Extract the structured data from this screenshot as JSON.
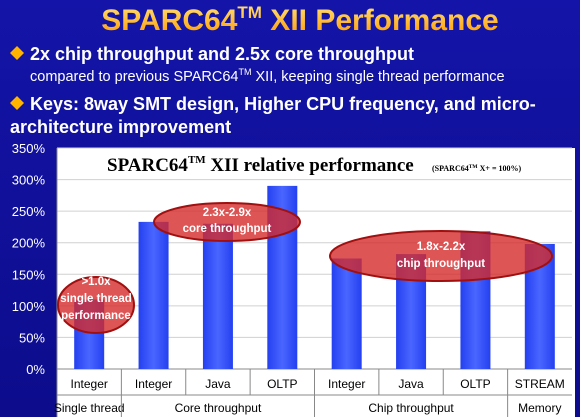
{
  "header": {
    "title": [
      "SPARC64",
      "TM",
      " XII Performance"
    ],
    "bullets": [
      {
        "lines": [
          [
            "2x chip throughput and 2.5x core throughput"
          ],
          [
            "compared to previous SPARC64",
            "TM",
            " XII, keeping single thread performance"
          ]
        ]
      },
      {
        "lines": [
          [
            "Keys: 8way SMT design, Higher CPU frequency, and micro-"
          ],
          [
            "architecture improvement"
          ]
        ]
      }
    ]
  },
  "chart_data": {
    "type": "bar",
    "title": [
      "SPARC64",
      "TM",
      " XII relative performance"
    ],
    "subtitle": [
      "(SPARC64",
      "TM",
      " X+ = 100%)"
    ],
    "color": "#2f4cf5",
    "groups": [
      {
        "name": "Single thread",
        "categories": [
          "Integer"
        ],
        "values": [
          110
        ]
      },
      {
        "name": "Core throughput",
        "categories": [
          "Integer",
          "Java",
          "OLTP"
        ],
        "values": [
          233,
          230,
          290
        ]
      },
      {
        "name": "Chip throughput",
        "categories": [
          "Integer",
          "Java",
          "OLTP"
        ],
        "values": [
          175,
          182,
          218
        ]
      },
      {
        "name": "Memory",
        "categories": [
          "STREAM"
        ],
        "values": [
          198
        ]
      }
    ],
    "ylim": [
      0,
      350
    ],
    "yticks": [
      {
        "value": 0,
        "label": "0%"
      },
      {
        "value": 50,
        "label": "50%"
      },
      {
        "value": 100,
        "label": "100%"
      },
      {
        "value": 150,
        "label": "150%"
      },
      {
        "value": 200,
        "label": "200%"
      },
      {
        "value": 250,
        "label": "250%"
      },
      {
        "value": 300,
        "label": "300%"
      },
      {
        "value": 350,
        "label": "350%"
      }
    ],
    "grid": true,
    "annotations": [
      {
        "lines": [
          ">1.0x",
          "single thread",
          "performance"
        ]
      },
      {
        "lines": [
          "2.3x-2.9x",
          "core throughput"
        ]
      },
      {
        "lines": [
          "1.8x-2.2x",
          "chip throughput"
        ]
      }
    ]
  }
}
